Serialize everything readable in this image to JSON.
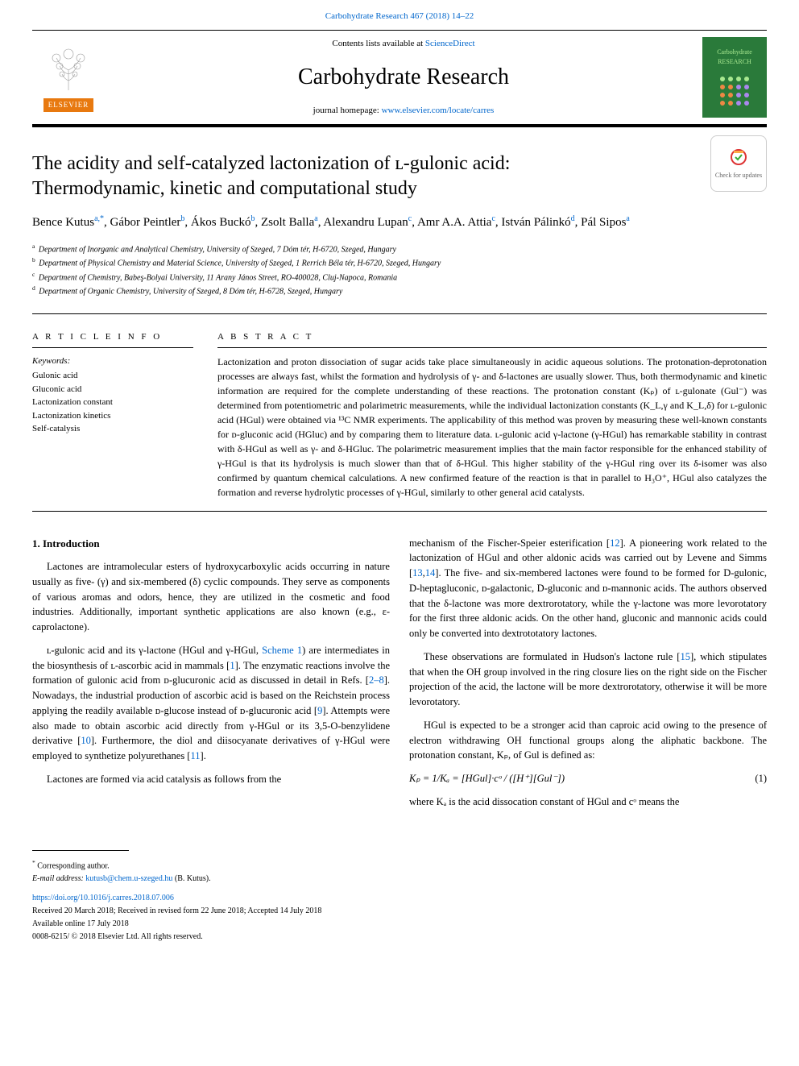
{
  "top_link": {
    "text": "Carbohydrate Research 467 (2018) 14–22",
    "href_text": "Carbohydrate Research 467 (2018) 14–22"
  },
  "header": {
    "contents_prefix": "Contents lists available at ",
    "contents_link": "ScienceDirect",
    "journal_title": "Carbohydrate Research",
    "homepage_prefix": "journal homepage: ",
    "homepage_link": "www.elsevier.com/locate/carres",
    "elsevier_label": "ELSEVIER",
    "journal_logo_top": "Carbohydrate",
    "journal_logo_bottom": "RESEARCH"
  },
  "check_updates": {
    "label": "Check for updates"
  },
  "title_line1": "The acidity and self-catalyzed lactonization of ʟ-gulonic acid:",
  "title_line2": "Thermodynamic, kinetic and computational study",
  "authors": [
    {
      "name": "Bence Kutus",
      "sup": "a,*"
    },
    {
      "name": "Gábor Peintler",
      "sup": "b"
    },
    {
      "name": "Ákos Buckó",
      "sup": "b"
    },
    {
      "name": "Zsolt Balla",
      "sup": "a"
    },
    {
      "name": "Alexandru Lupan",
      "sup": "c"
    },
    {
      "name": "Amr A.A. Attia",
      "sup": "c"
    },
    {
      "name": "István Pálinkó",
      "sup": "d"
    },
    {
      "name": "Pál Sipos",
      "sup": "a"
    }
  ],
  "affiliations": [
    {
      "sup": "a",
      "text": "Department of Inorganic and Analytical Chemistry, University of Szeged, 7 Dóm tér, H-6720, Szeged, Hungary"
    },
    {
      "sup": "b",
      "text": "Department of Physical Chemistry and Material Science, University of Szeged, 1 Rerrich Béla tér, H-6720, Szeged, Hungary"
    },
    {
      "sup": "c",
      "text": "Department of Chemistry, Babeş-Bolyai University, 11 Arany János Street, RO-400028, Cluj-Napoca, Romania"
    },
    {
      "sup": "d",
      "text": "Department of Organic Chemistry, University of Szeged, 8 Dóm tér, H-6728, Szeged, Hungary"
    }
  ],
  "article_info_label": "A R T I C L E  I N F O",
  "keywords_label": "Keywords:",
  "keywords": [
    "Gulonic acid",
    "Gluconic acid",
    "Lactonization constant",
    "Lactonization kinetics",
    "Self-catalysis"
  ],
  "abstract_label": "A B S T R A C T",
  "abstract_text": "Lactonization and proton dissociation of sugar acids take place simultaneously in acidic aqueous solutions. The protonation-deprotonation processes are always fast, whilst the formation and hydrolysis of γ- and δ-lactones are usually slower. Thus, both thermodynamic and kinetic information are required for the complete understanding of these reactions. The protonation constant (Kₚ) of ʟ-gulonate (Gul⁻) was determined from potentiometric and polarimetric measurements, while the individual lactonization constants (K_L,γ and K_L,δ) for ʟ-gulonic acid (HGul) were obtained via ¹³C NMR experiments. The applicability of this method was proven by measuring these well-known constants for ᴅ-gluconic acid (HGluc) and by comparing them to literature data. ʟ-gulonic acid γ-lactone (γ-HGul) has remarkable stability in contrast with δ-HGul as well as γ- and δ-HGluc. The polarimetric measurement implies that the main factor responsible for the enhanced stability of γ-HGul is that its hydrolysis is much slower than that of δ-HGul. This higher stability of the γ-HGul ring over its δ-isomer was also confirmed by quantum chemical calculations. A new confirmed feature of the reaction is that in parallel to H₃O⁺, HGul also catalyzes the formation and reverse hydrolytic processes of γ-HGul, similarly to other general acid catalysts.",
  "section1_heading": "1. Introduction",
  "para1": "Lactones are intramolecular esters of hydroxycarboxylic acids occurring in nature usually as five- (γ) and six-membered (δ) cyclic compounds. They serve as components of various aromas and odors, hence, they are utilized in the cosmetic and food industries. Additionally, important synthetic applications are also known (e.g., ε-caprolactone).",
  "para2_a": "ʟ-gulonic acid and its γ-lactone (HGul and γ-HGul, ",
  "para2_scheme": "Scheme 1",
  "para2_b": ") are intermediates in the biosynthesis of ʟ-ascorbic acid in mammals [",
  "para2_ref1": "1",
  "para2_c": "]. The enzymatic reactions involve the formation of gulonic acid from ᴅ-glucuronic acid as discussed in detail in Refs. [",
  "para2_ref2": "2–8",
  "para2_d": "]. Nowadays, the industrial production of ascorbic acid is based on the Reichstein process applying the readily available ᴅ-glucose instead of ᴅ-glucuronic acid [",
  "para2_ref3": "9",
  "para2_e": "]. Attempts were also made to obtain ascorbic acid directly from γ-HGul or its 3,5-O-benzylidene derivative [",
  "para2_ref4": "10",
  "para2_f": "]. Furthermore, the diol and diisocyanate derivatives of γ-HGul were employed to synthetize polyurethanes [",
  "para2_ref5": "11",
  "para2_g": "].",
  "para3": "Lactones are formed via acid catalysis as follows from the",
  "para4_a": "mechanism of the Fischer-Speier esterification [",
  "para4_ref1": "12",
  "para4_b": "]. A pioneering work related to the lactonization of HGul and other aldonic acids was carried out by Levene and Simms [",
  "para4_ref2": "13",
  "para4_ref3": "14",
  "para4_c": "]. The five- and six-membered lactones were found to be formed for D-gulonic, D-heptagluconic, ᴅ-galactonic, D-gluconic and ᴅ-mannonic acids. The authors observed that the δ-lactone was more dextrorotatory, while the γ-lactone was more levorotatory for the first three aldonic acids. On the other hand, gluconic and mannonic acids could only be converted into dextrototatory lactones.",
  "para5_a": "These observations are formulated in Hudson's lactone rule [",
  "para5_ref1": "15",
  "para5_b": "], which stipulates that when the OH group involved in the ring closure lies on the right side on the Fischer projection of the acid, the lactone will be more dextrorotatory, otherwise it will be more levorotatory.",
  "para6": "HGul is expected to be a stronger acid than caproic acid owing to the presence of electron withdrawing OH functional groups along the aliphatic backbone. The protonation constant, Kₚ, of Gul is defined as:",
  "equation": {
    "body": "Kₚ = 1/Kₐ = [HGul]·cᵒ / ([H⁺][Gul⁻])",
    "num": "(1)"
  },
  "para7": "where Kₐ is the acid dissocation constant of HGul and cᵒ means the",
  "footer": {
    "corresp_star": "*",
    "corresp_text": "Corresponding author.",
    "email_label": "E-mail address: ",
    "email": "kutusb@chem.u-szeged.hu",
    "email_author": " (B. Kutus).",
    "doi": "https://doi.org/10.1016/j.carres.2018.07.006",
    "received": "Received 20 March 2018; Received in revised form 22 June 2018; Accepted 14 July 2018",
    "available": "Available online 17 July 2018",
    "copyright": "0008-6215/ © 2018 Elsevier Ltd. All rights reserved."
  },
  "colors": {
    "link": "#0066cc",
    "elsevier_orange": "#e8790f",
    "journal_green": "#2a7a3a",
    "journal_light": "#a8e890"
  }
}
